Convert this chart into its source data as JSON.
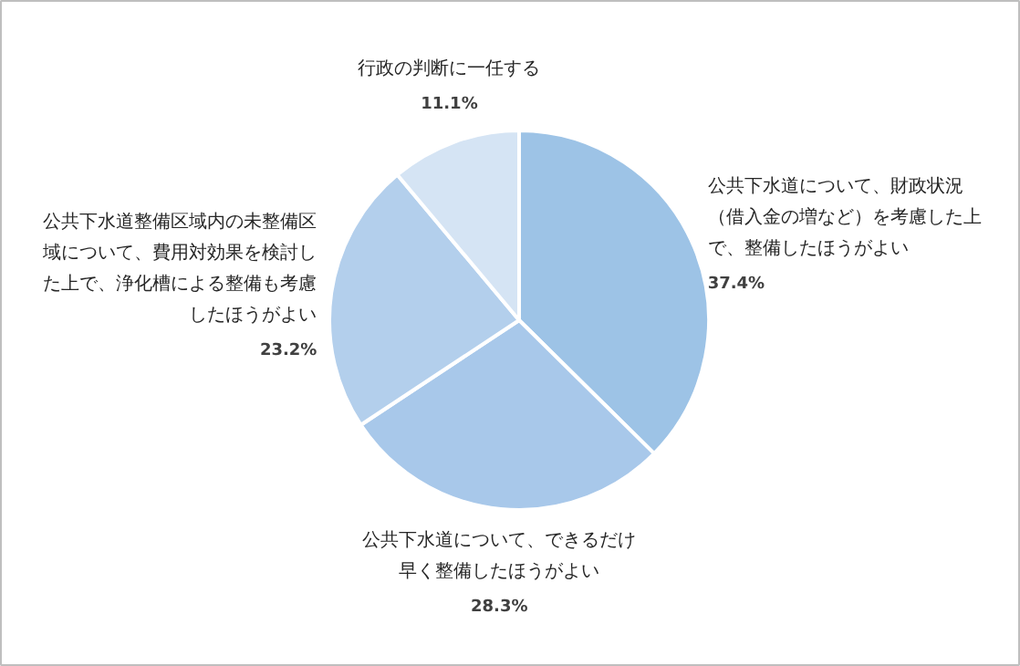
{
  "chart_data": {
    "type": "pie",
    "categories": [
      "公共下水道について、財政状況（借入金の増など）を考慮した上で、整備したほうがよい",
      "公共下水道について、できるだけ早く整備したほうがよい",
      "公共下水道整備区域内の未整備区域について、費用対効果を検討した上で、浄化槽による整備も考慮したほうがよい",
      "行政の判断に一任する"
    ],
    "values": [
      37.4,
      28.3,
      23.2,
      11.1
    ],
    "value_labels": [
      "37.4%",
      "28.3%",
      "23.2%",
      "11.1%"
    ],
    "colors": [
      "#9dc3e6",
      "#a8c8ea",
      "#b3cfec",
      "#d5e4f4"
    ]
  }
}
